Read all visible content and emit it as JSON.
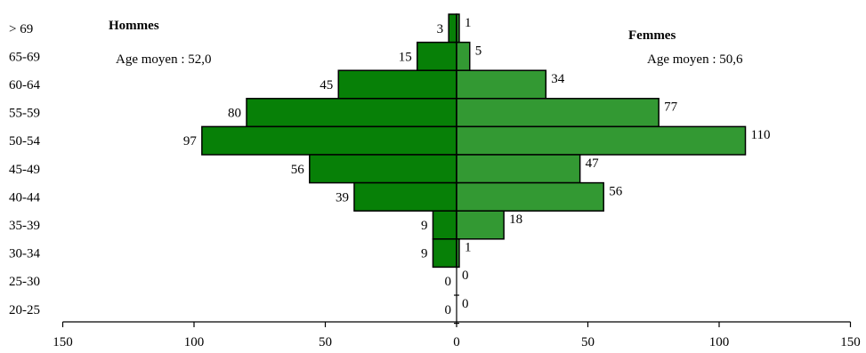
{
  "chart_data": {
    "type": "bar",
    "orientation": "horizontal",
    "categories": [
      "> 69",
      "65-69",
      "60-64",
      "55-59",
      "50-54",
      "45-49",
      "40-44",
      "35-39",
      "30-34",
      "25-30",
      "20-25"
    ],
    "series": [
      {
        "name": "Hommes",
        "values": [
          3,
          15,
          45,
          80,
          97,
          56,
          39,
          9,
          9,
          0,
          0
        ],
        "color": "#078007"
      },
      {
        "name": "Femmes",
        "values": [
          1,
          5,
          34,
          77,
          110,
          47,
          56,
          18,
          1,
          0,
          0
        ],
        "color": "#339933"
      }
    ],
    "annotations": {
      "hommes_title": "Hommes",
      "hommes_mean": "Age moyen : 52,0",
      "femmes_title": "Femmes",
      "femmes_mean": "Age moyen : 50,6"
    },
    "xlim": [
      -150,
      150
    ],
    "xticks": [
      {
        "value": -150,
        "label": "150"
      },
      {
        "value": -100,
        "label": "100"
      },
      {
        "value": -50,
        "label": "50"
      },
      {
        "value": 0,
        "label": "0"
      },
      {
        "value": 50,
        "label": "50"
      },
      {
        "value": 100,
        "label": "100"
      },
      {
        "value": 150,
        "label": "150"
      }
    ],
    "grid": false,
    "legend": "none"
  }
}
